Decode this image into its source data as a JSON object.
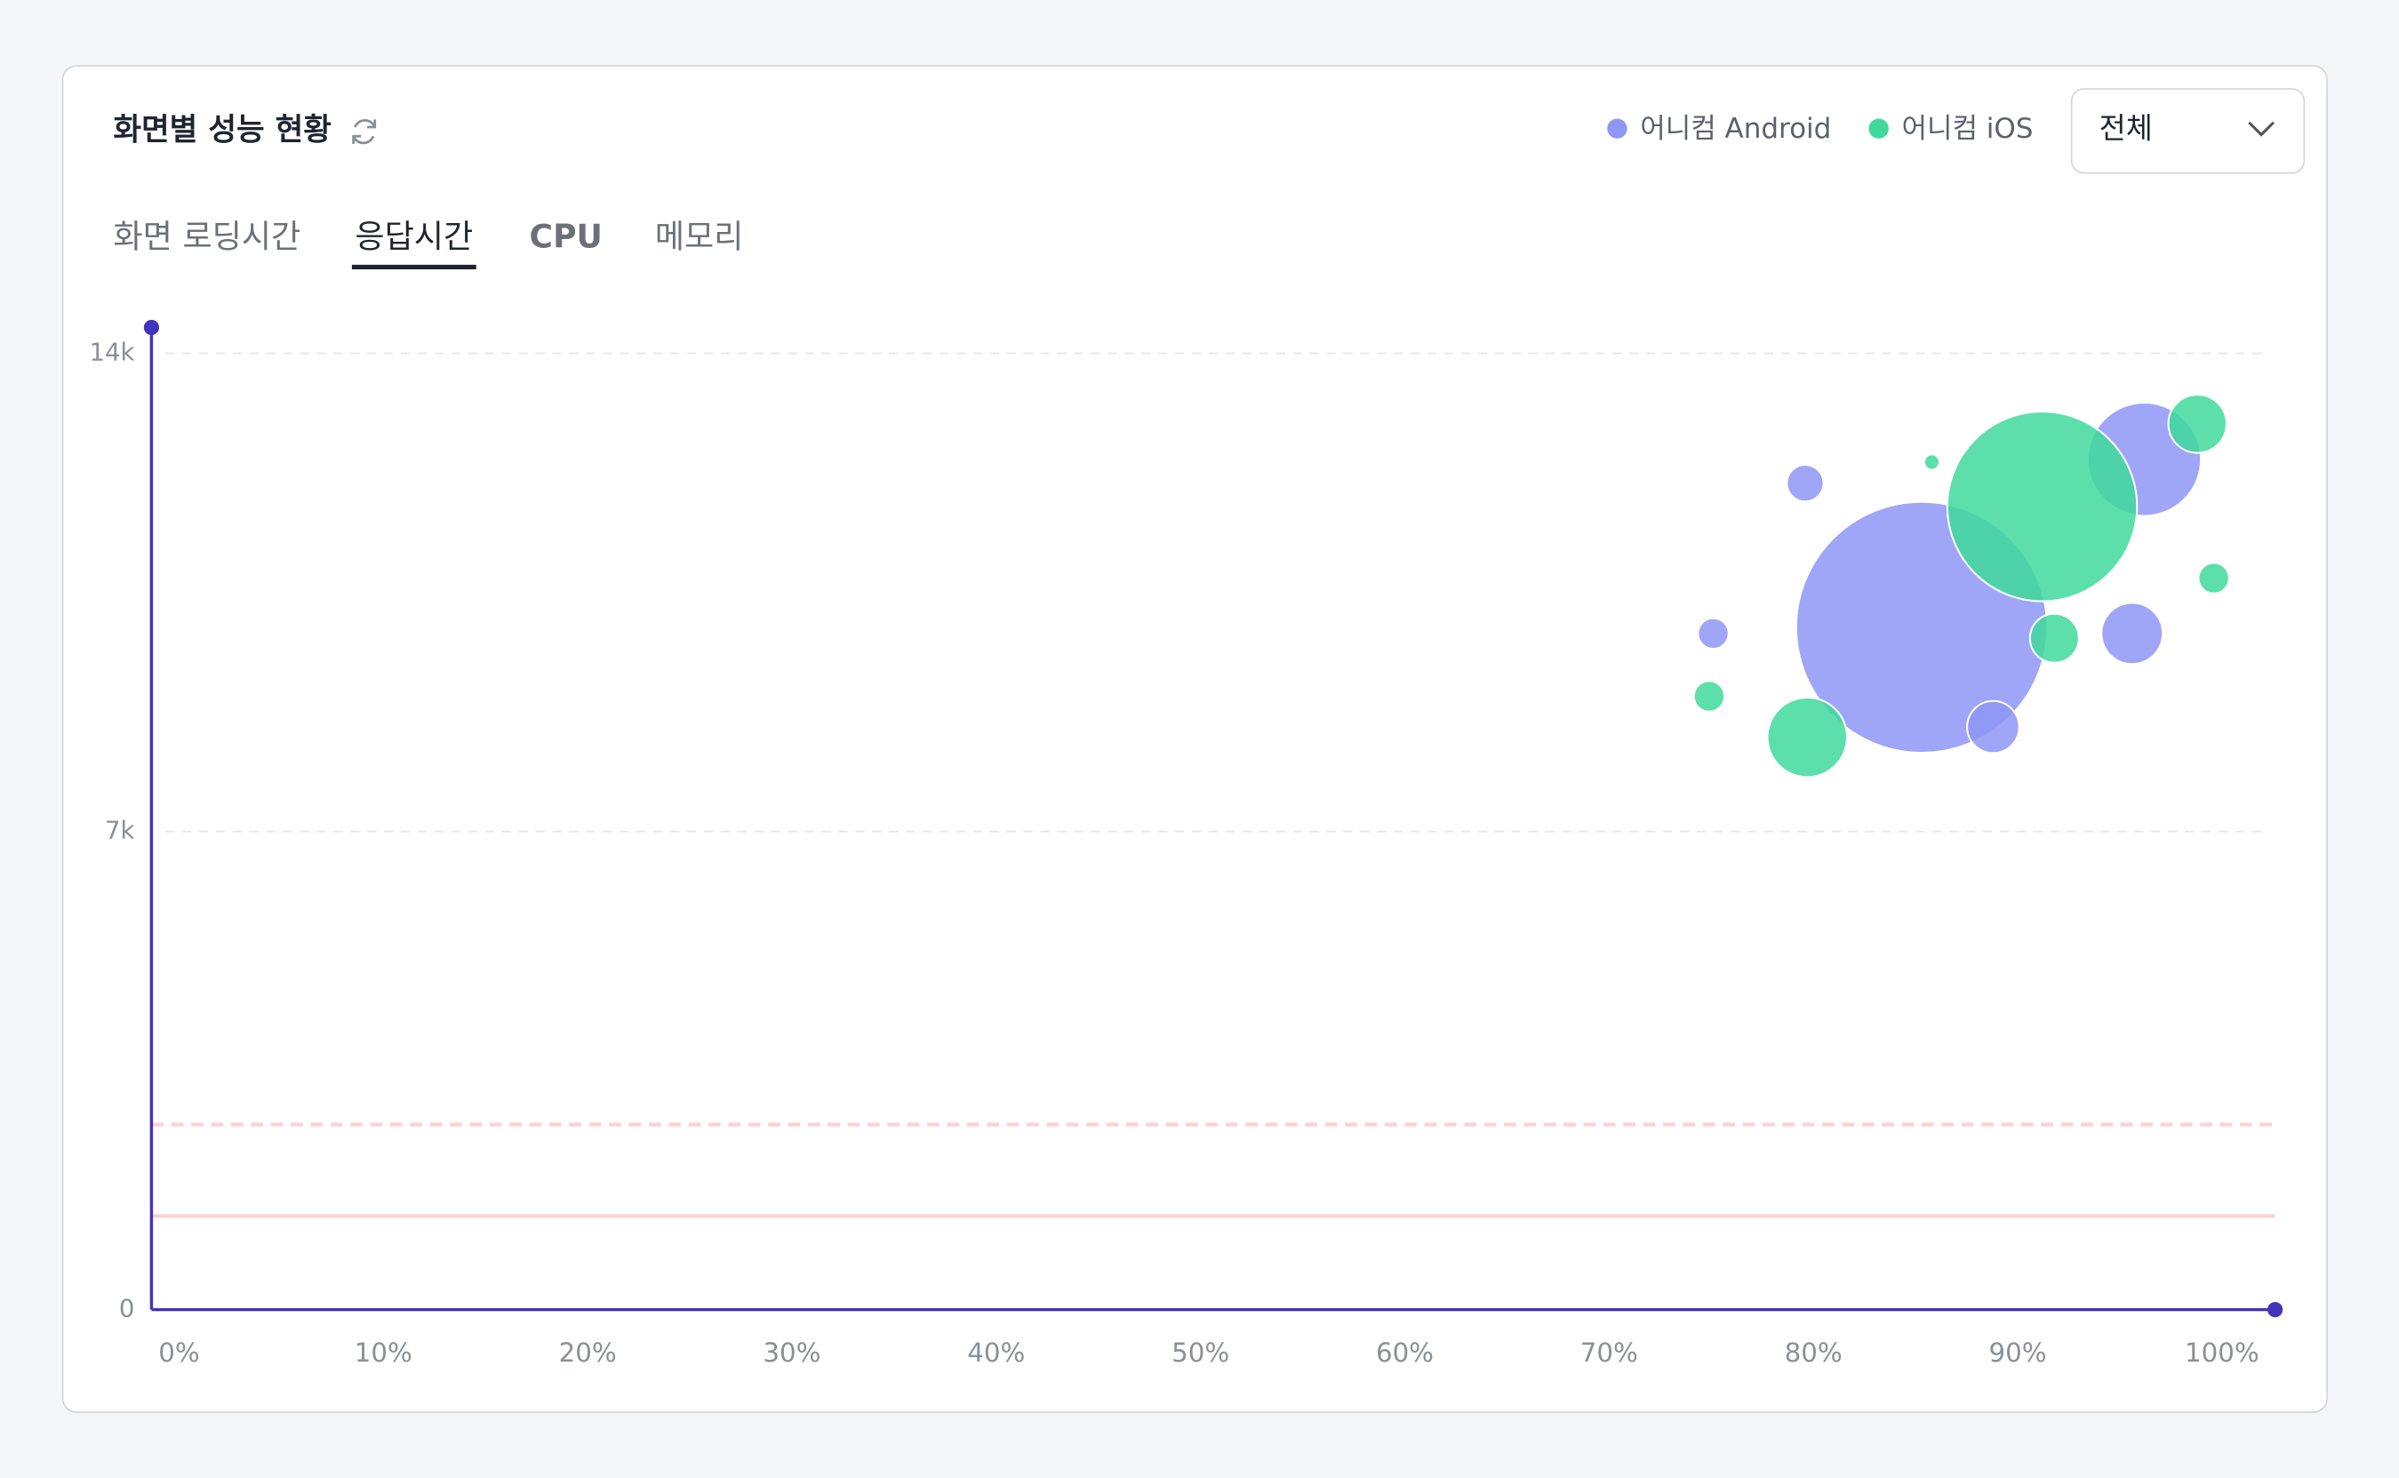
{
  "header": {
    "title": "화면별 성능 현황",
    "dropdown": "전체"
  },
  "tabs": [
    "화면 로딩시간",
    "응답시간",
    "CPU",
    "메모리"
  ],
  "active_tab": 1,
  "chart_data": {
    "type": "bubble",
    "series": [
      {
        "name": "어니컴 Android",
        "color": "#8e97f6",
        "x": [
          79.6,
          75.1,
          85.3,
          88.8,
          95.6,
          96.2
        ],
        "values": [
          12100,
          9900,
          9990,
          8530,
          9900,
          12450
        ],
        "sizes": [
          12,
          10,
          82,
          17,
          20,
          37
        ]
      },
      {
        "name": "어니컴 iOS",
        "color": "#3fd99c",
        "x": [
          85.8,
          91.2,
          98.8,
          99.6,
          91.8,
          74.9,
          79.7
        ],
        "values": [
          12410,
          11760,
          12970,
          10710,
          9830,
          8980,
          8380
        ],
        "sizes": [
          5,
          62,
          19,
          10,
          16,
          10,
          26
        ]
      }
    ],
    "xlim": [
      -1.35,
      102.6
    ],
    "ylim": [
      0,
      14380
    ],
    "xticks": [
      {
        "value": 0,
        "label": "0%"
      },
      {
        "value": 10,
        "label": "10%"
      },
      {
        "value": 20,
        "label": "20%"
      },
      {
        "value": 30,
        "label": "30%"
      },
      {
        "value": 40,
        "label": "40%"
      },
      {
        "value": 50,
        "label": "50%"
      },
      {
        "value": 60,
        "label": "60%"
      },
      {
        "value": 70,
        "label": "70%"
      },
      {
        "value": 80,
        "label": "80%"
      },
      {
        "value": 90,
        "label": "90%"
      },
      {
        "value": 100,
        "label": "100%"
      }
    ],
    "yticks": [
      0,
      {
        "value": 7000,
        "label": "7k"
      },
      {
        "value": 14000,
        "label": "14k"
      }
    ],
    "grid": true,
    "reference_lines": [
      {
        "value": 2710,
        "style": "dashed",
        "color": "#fbd3d3"
      },
      {
        "value": 1370,
        "style": "solid",
        "color": "#fbd3d3"
      }
    ],
    "axis_color": "#4433bb"
  }
}
